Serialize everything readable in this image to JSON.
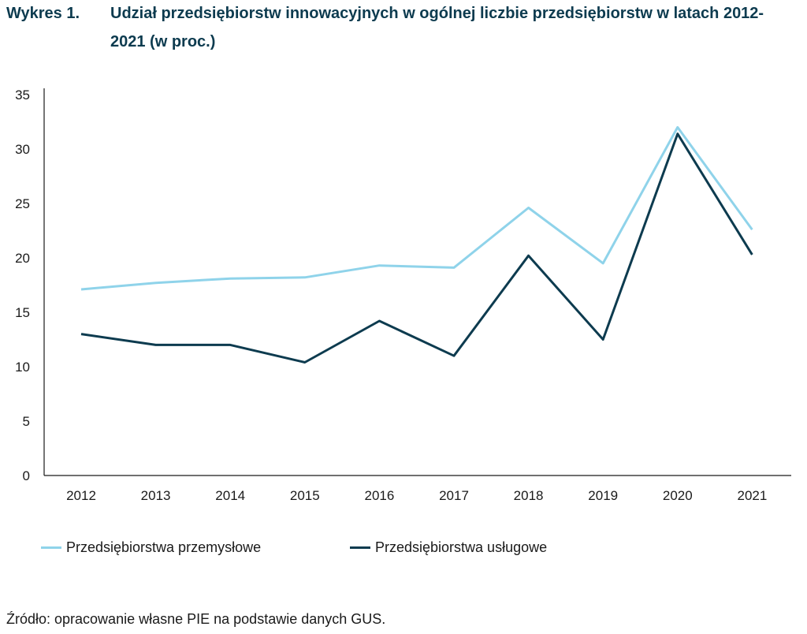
{
  "figure_label": "Wykres 1.",
  "chart_data": {
    "type": "line",
    "title": "Udział przedsiębiorstw innowacyjnych w ogólnej liczbie przedsiębiorstw w latach 2012-2021 (w proc.)",
    "categories": [
      "2012",
      "2013",
      "2014",
      "2015",
      "2016",
      "2017",
      "2018",
      "2019",
      "2020",
      "2021"
    ],
    "series": [
      {
        "name": "Przedsiębiorstwa przemysłowe",
        "color": "#8fd3ea",
        "values": [
          17.1,
          17.7,
          18.1,
          18.2,
          19.3,
          19.1,
          24.6,
          19.5,
          32.0,
          22.6
        ]
      },
      {
        "name": "Przedsiębiorstwa usługowe",
        "color": "#0d3b4f",
        "values": [
          13.0,
          12.0,
          12.0,
          10.4,
          14.2,
          11.0,
          20.2,
          12.5,
          31.4,
          20.3
        ]
      }
    ],
    "yticks": [
      "0",
      "5",
      "10",
      "15",
      "20",
      "25",
      "30",
      "35"
    ],
    "ylim": [
      0,
      35
    ],
    "grid": false,
    "legend_position": "bottom-left"
  },
  "source": "Źródło: opracowanie własne PIE na podstawie danych GUS."
}
